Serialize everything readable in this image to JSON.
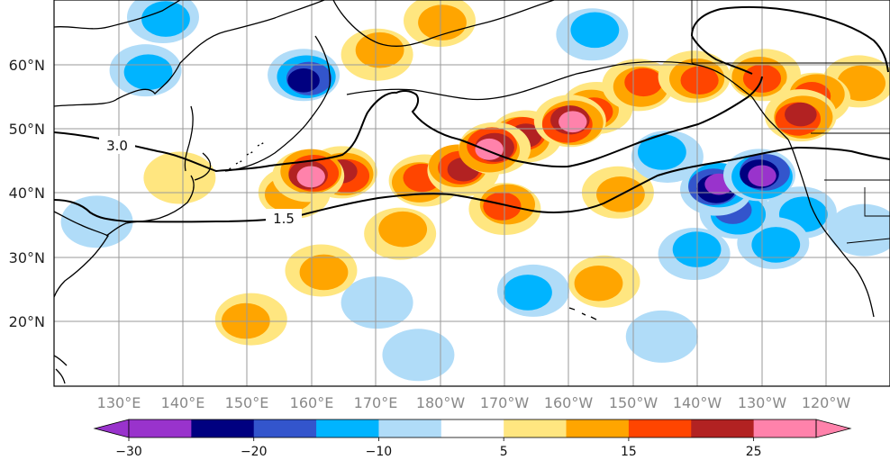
{
  "map": {
    "latitude_labels": [
      "60°N",
      "50°N",
      "40°N",
      "30°N",
      "20°N"
    ],
    "longitude_labels": [
      "130°E",
      "140°E",
      "150°E",
      "160°E",
      "170°E",
      "180°W",
      "170°W",
      "160°W",
      "150°W",
      "140°W",
      "130°W",
      "120°W"
    ],
    "contour_labels": [
      "3.0",
      "1.5"
    ],
    "anomaly_blobs": [
      {
        "lon": 160,
        "lat": 43,
        "level": 25
      },
      {
        "lon": 165,
        "lat": 43,
        "level": 20
      },
      {
        "lon": 157,
        "lat": 40,
        "level": 10
      },
      {
        "lon": 177,
        "lat": 42,
        "level": 15
      },
      {
        "lon": 183,
        "lat": 44,
        "level": 20
      },
      {
        "lon": 188,
        "lat": 47,
        "level": 25
      },
      {
        "lon": 193,
        "lat": 49,
        "level": 20
      },
      {
        "lon": 200,
        "lat": 51,
        "level": 25
      },
      {
        "lon": 204,
        "lat": 53,
        "level": 15
      },
      {
        "lon": 190,
        "lat": 38,
        "level": 15
      },
      {
        "lon": 211,
        "lat": 57,
        "level": 15
      },
      {
        "lon": 220,
        "lat": 58,
        "level": 15
      },
      {
        "lon": 230,
        "lat": 58,
        "level": 15
      },
      {
        "lon": 238,
        "lat": 55,
        "level": 15
      },
      {
        "lon": 236,
        "lat": 52,
        "level": 20
      },
      {
        "lon": 245,
        "lat": 57,
        "level": 10
      },
      {
        "lon": 174,
        "lat": 34,
        "level": 10
      },
      {
        "lon": 162,
        "lat": 28,
        "level": 10
      },
      {
        "lon": 205,
        "lat": 26,
        "level": 10
      },
      {
        "lon": 170,
        "lat": 62,
        "level": 10
      },
      {
        "lon": 180,
        "lat": 67,
        "level": 10
      },
      {
        "lon": 208,
        "lat": 40,
        "level": 10
      },
      {
        "lon": 150,
        "lat": 20,
        "level": 10
      },
      {
        "lon": 140,
        "lat": 42,
        "level": 5
      },
      {
        "lon": 215,
        "lat": 46,
        "level": -10
      },
      {
        "lon": 223,
        "lat": 41,
        "level": -25
      },
      {
        "lon": 230,
        "lat": 43,
        "level": -25
      },
      {
        "lon": 226,
        "lat": 37,
        "level": -15
      },
      {
        "lon": 236,
        "lat": 37,
        "level": -10
      },
      {
        "lon": 232,
        "lat": 32,
        "level": -10
      },
      {
        "lon": 220,
        "lat": 31,
        "level": -10
      },
      {
        "lon": 214,
        "lat": 18,
        "level": -5
      },
      {
        "lon": 194,
        "lat": 25,
        "level": -10
      },
      {
        "lon": 170,
        "lat": 23,
        "level": -5
      },
      {
        "lon": 159,
        "lat": 58,
        "level": -20
      },
      {
        "lon": 134,
        "lat": 59,
        "level": -10
      },
      {
        "lon": 137,
        "lat": 67,
        "level": -10
      },
      {
        "lon": 204,
        "lat": 65,
        "level": -10
      },
      {
        "lon": 246,
        "lat": 34,
        "level": -5
      },
      {
        "lon": 127,
        "lat": 36,
        "level": -5
      },
      {
        "lon": 176,
        "lat": 15,
        "level": -5
      }
    ],
    "colorbar": {
      "ticks": [
        -30,
        -20,
        -10,
        5,
        15,
        25
      ],
      "bounds": [
        -30,
        -25,
        -20,
        -15,
        -10,
        -5,
        5,
        10,
        15,
        20,
        25,
        30
      ],
      "colors": [
        "#9933cc",
        "#000080",
        "#3355cc",
        "#00b4ff",
        "#b0dcf8",
        "#ffffff",
        "#ffe680",
        "#ffa500",
        "#ff4500",
        "#b22222",
        "#ff82ab"
      ],
      "under_color": "#9933cc",
      "over_color": "#ff82ab"
    }
  }
}
